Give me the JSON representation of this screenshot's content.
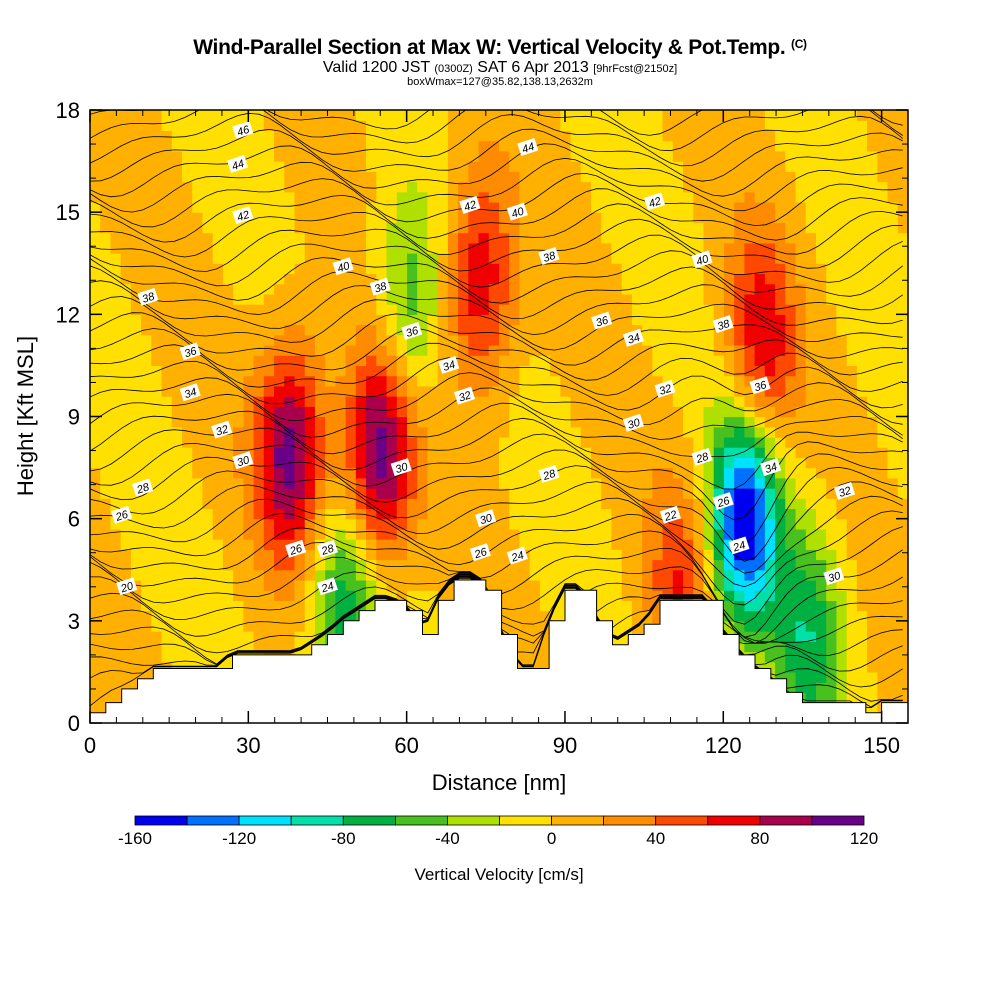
{
  "title": {
    "main": "Wind-Parallel Section at Max W: Vertical Velocity & Pot.Temp.",
    "main_mark": "(C)",
    "valid_prefix": "Valid 1200 JST",
    "valid_utc": "(0300Z)",
    "valid_date": "SAT 6 Apr 2013",
    "forecast": "[9hrFcst@2150z]",
    "box": "boxWmax=127@35.82,138.13,2632m"
  },
  "chart_data": {
    "type": "heatmap",
    "xlabel": "Distance [nm]",
    "ylabel": "Height [Kft MSL]",
    "xlim": [
      0,
      155
    ],
    "ylim": [
      0,
      18
    ],
    "xticks": [
      0,
      30,
      60,
      90,
      120,
      150
    ],
    "yticks": [
      0,
      3,
      6,
      9,
      12,
      15,
      18
    ],
    "colorbar": {
      "label": "Vertical Velocity [cm/s]",
      "ticks": [
        -160,
        -120,
        -80,
        -40,
        0,
        40,
        80,
        120
      ],
      "levels": [
        -160,
        -140,
        -120,
        -100,
        -80,
        -60,
        -40,
        -20,
        0,
        20,
        40,
        60,
        80,
        100,
        120
      ],
      "colors": [
        "#0000f0",
        "#0070ff",
        "#00e0ff",
        "#00e0a8",
        "#00b040",
        "#48c020",
        "#b0e000",
        "#ffe000",
        "#ffb000",
        "#ff8c00",
        "#ff4800",
        "#f00000",
        "#a8004c",
        "#6a0088"
      ]
    },
    "terrain": {
      "description": "Terrain cross-section (no data below)",
      "distance_nm": [
        0,
        3,
        6,
        9,
        12,
        15,
        18,
        21,
        24,
        27,
        30,
        33,
        36,
        39,
        42,
        45,
        48,
        51,
        54,
        57,
        60,
        63,
        66,
        69,
        72,
        75,
        78,
        81,
        84,
        87,
        90,
        93,
        96,
        99,
        102,
        105,
        108,
        111,
        114,
        117,
        120,
        123,
        126,
        129,
        132,
        135,
        138,
        141,
        144,
        147,
        150,
        153,
        155
      ],
      "height_kft": [
        0.3,
        0.6,
        1.0,
        1.3,
        1.6,
        1.6,
        1.6,
        1.6,
        1.6,
        2.0,
        2.0,
        2.0,
        2.0,
        2.0,
        2.3,
        2.6,
        3.0,
        3.3,
        3.6,
        3.6,
        3.3,
        2.6,
        3.6,
        4.2,
        4.2,
        3.9,
        2.6,
        1.6,
        1.6,
        3.0,
        3.9,
        3.9,
        3.0,
        2.3,
        2.6,
        2.9,
        3.6,
        3.6,
        3.6,
        3.6,
        2.6,
        2.0,
        1.6,
        1.3,
        0.9,
        0.6,
        0.6,
        0.6,
        0.6,
        0.3,
        0.6,
        0.6,
        0.6
      ]
    },
    "updrafts_cm_s": [
      {
        "center_nm": 38,
        "center_kft": 8.0,
        "peak": 110
      },
      {
        "center_nm": 55,
        "center_kft": 8.0,
        "peak": 120
      },
      {
        "center_nm": 74,
        "center_kft": 13.0,
        "peak": 80
      },
      {
        "center_nm": 127,
        "center_kft": 11.0,
        "peak": 80
      },
      {
        "center_nm": 112,
        "center_kft": 4.0,
        "peak": 55
      }
    ],
    "downdrafts_cm_s": [
      {
        "center_nm": 124,
        "center_kft": 6.0,
        "peak": -160
      },
      {
        "center_nm": 60,
        "center_kft": 12.0,
        "peak": -60
      },
      {
        "center_nm": 48,
        "center_kft": 3.0,
        "peak": -80
      },
      {
        "center_nm": 136,
        "center_kft": 2.5,
        "peak": -70
      }
    ],
    "theta_contour_labels_C": [
      {
        "value": "46",
        "x_nm": 29,
        "y_kft": 17.4
      },
      {
        "value": "44",
        "x_nm": 28,
        "y_kft": 16.4
      },
      {
        "value": "42",
        "x_nm": 29,
        "y_kft": 14.9
      },
      {
        "value": "40",
        "x_nm": 48,
        "y_kft": 13.4
      },
      {
        "value": "38",
        "x_nm": 11,
        "y_kft": 12.5
      },
      {
        "value": "36",
        "x_nm": 19,
        "y_kft": 10.9
      },
      {
        "value": "34",
        "x_nm": 19,
        "y_kft": 9.7
      },
      {
        "value": "32",
        "x_nm": 25,
        "y_kft": 8.6
      },
      {
        "value": "30",
        "x_nm": 29,
        "y_kft": 7.7
      },
      {
        "value": "28",
        "x_nm": 10,
        "y_kft": 6.9
      },
      {
        "value": "26",
        "x_nm": 6,
        "y_kft": 6.1
      },
      {
        "value": "20",
        "x_nm": 7,
        "y_kft": 4.0
      },
      {
        "value": "26",
        "x_nm": 39,
        "y_kft": 5.1
      },
      {
        "value": "28",
        "x_nm": 45,
        "y_kft": 5.1
      },
      {
        "value": "24",
        "x_nm": 45,
        "y_kft": 4.0
      },
      {
        "value": "38",
        "x_nm": 55,
        "y_kft": 12.8
      },
      {
        "value": "36",
        "x_nm": 61,
        "y_kft": 11.5
      },
      {
        "value": "34",
        "x_nm": 68,
        "y_kft": 10.5
      },
      {
        "value": "32",
        "x_nm": 71,
        "y_kft": 9.6
      },
      {
        "value": "30",
        "x_nm": 59,
        "y_kft": 7.5
      },
      {
        "value": "30",
        "x_nm": 75,
        "y_kft": 6.0
      },
      {
        "value": "26",
        "x_nm": 74,
        "y_kft": 5.0
      },
      {
        "value": "24",
        "x_nm": 81,
        "y_kft": 4.9
      },
      {
        "value": "42",
        "x_nm": 72,
        "y_kft": 15.2
      },
      {
        "value": "44",
        "x_nm": 83,
        "y_kft": 16.9
      },
      {
        "value": "40",
        "x_nm": 81,
        "y_kft": 15.0
      },
      {
        "value": "38",
        "x_nm": 87,
        "y_kft": 13.7
      },
      {
        "value": "36",
        "x_nm": 97,
        "y_kft": 11.8
      },
      {
        "value": "34",
        "x_nm": 103,
        "y_kft": 11.3
      },
      {
        "value": "28",
        "x_nm": 87,
        "y_kft": 7.3
      },
      {
        "value": "30",
        "x_nm": 103,
        "y_kft": 8.8
      },
      {
        "value": "32",
        "x_nm": 109,
        "y_kft": 9.8
      },
      {
        "value": "42",
        "x_nm": 107,
        "y_kft": 15.3
      },
      {
        "value": "40",
        "x_nm": 116,
        "y_kft": 13.6
      },
      {
        "value": "38",
        "x_nm": 120,
        "y_kft": 11.7
      },
      {
        "value": "36",
        "x_nm": 127,
        "y_kft": 9.9
      },
      {
        "value": "34",
        "x_nm": 129,
        "y_kft": 7.5
      },
      {
        "value": "28",
        "x_nm": 116,
        "y_kft": 7.8
      },
      {
        "value": "26",
        "x_nm": 120,
        "y_kft": 6.5
      },
      {
        "value": "24",
        "x_nm": 123,
        "y_kft": 5.2
      },
      {
        "value": "22",
        "x_nm": 110,
        "y_kft": 6.1
      },
      {
        "value": "32",
        "x_nm": 143,
        "y_kft": 6.8
      },
      {
        "value": "30",
        "x_nm": 141,
        "y_kft": 4.3
      }
    ]
  }
}
